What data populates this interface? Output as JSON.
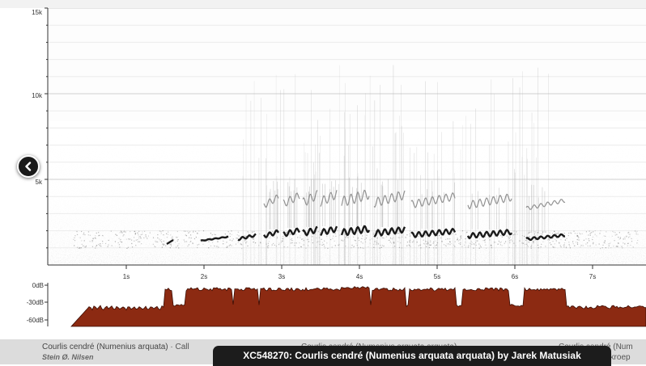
{
  "spectrogram": {
    "freq_ticks": [
      "15k",
      "10k",
      "5k"
    ],
    "time_ticks": [
      "1s",
      "2s",
      "3s",
      "4s",
      "5s",
      "6s",
      "7s"
    ]
  },
  "waveform": {
    "level_ticks": [
      "0dB",
      "-30dB",
      "-60dB"
    ],
    "fill_color": "#8c2a12"
  },
  "navigation": {
    "prev_icon": "chevron-left-icon"
  },
  "recording_bar": {
    "left_species": "Courlis cendré (Numenius arquata)",
    "left_separator": " · ",
    "left_type": "Call",
    "left_recordist": "Stein Ø. Nilsen",
    "mid_text": "Courlis cendré (Numenius arquata arquata)",
    "right_text": "Courlis cendré (Num",
    "right_text_2": "ekroep"
  },
  "caption": "XC548270: Courlis cendré (Numenius arquata arquata) by Jarek Matusiak"
}
